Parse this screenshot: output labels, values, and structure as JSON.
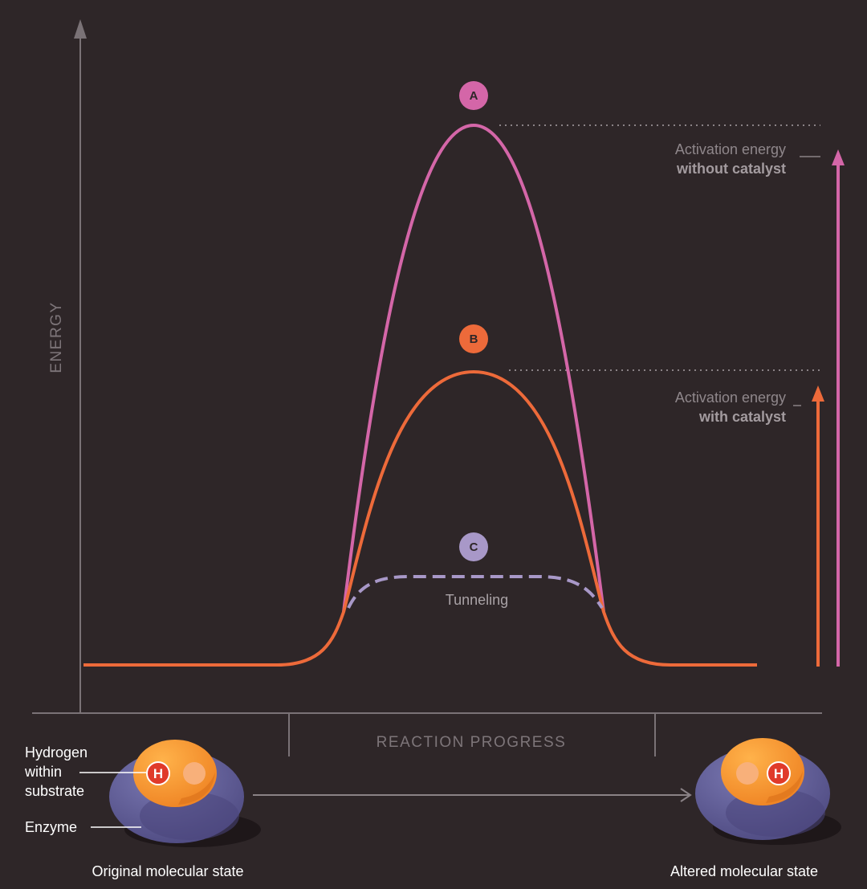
{
  "colors": {
    "background": "#2e2628",
    "axis": "#7a7276",
    "curve_uncatalyzed": "#d466a8",
    "curve_catalyzed": "#ed6a3a",
    "curve_tunneling": "#a898c8",
    "enzyme": "#5d5a93",
    "substrate": "#f5932e"
  },
  "axes": {
    "y_label": "ENERGY",
    "x_label": "REACTION PROGRESS"
  },
  "markers": {
    "a": "A",
    "b": "B",
    "c": "C"
  },
  "annotations": {
    "without_line1": "Activation energy",
    "without_line2": "without catalyst",
    "with_line1": "Activation energy",
    "with_line2": "with catalyst",
    "tunneling": "Tunneling"
  },
  "legend": {
    "hydrogen_line1": "Hydrogen",
    "hydrogen_line2": "within",
    "hydrogen_line3": "substrate",
    "enzyme": "Enzyme",
    "h_symbol": "H",
    "original_state": "Original molecular state",
    "altered_state": "Altered molecular state"
  }
}
